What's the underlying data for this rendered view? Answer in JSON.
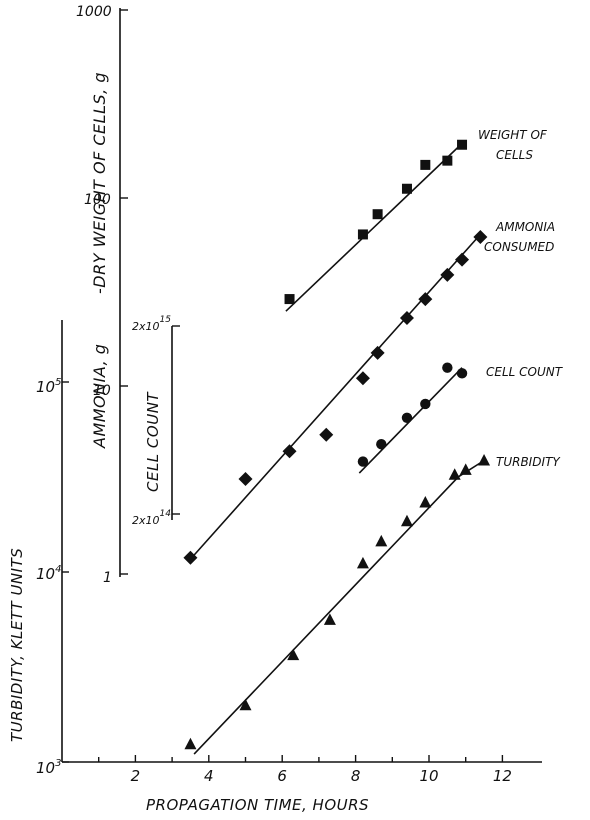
{
  "chart_data": {
    "type": "scatter",
    "title": "",
    "xlabel": "PROPAGATION TIME, HOURS",
    "x_ticks": [
      "2",
      "4",
      "6",
      "8",
      "10",
      "12"
    ],
    "xlim": [
      0,
      13
    ],
    "axes": {
      "turbidity": {
        "label": "TURBIDITY, KLETT UNITS",
        "scale": "log",
        "range": [
          1000,
          100000
        ],
        "tick_labels": [
          "10^3",
          "10^4",
          "10^5"
        ]
      },
      "ammonia_weight": {
        "label": "AMMONIA, g",
        "label2": "-DRY WEIGHT OF CELLS, g",
        "scale": "log",
        "range": [
          1,
          1000
        ],
        "tick_labels": [
          "1",
          "10",
          "100",
          "1000"
        ]
      },
      "cell_count": {
        "label": "CELL COUNT",
        "scale": "log",
        "range": [
          200000000000000.0,
          2000000000000000.0
        ],
        "tick_labels": [
          "2x10^14",
          "2x10^15"
        ]
      }
    },
    "series": [
      {
        "name": "WEIGHT OF CELLS",
        "axis": "ammonia_weight",
        "marker": "square",
        "x": [
          6.2,
          8.2,
          8.6,
          9.4,
          9.9,
          10.5,
          10.9
        ],
        "y": [
          29,
          64,
          82,
          112,
          150,
          158,
          192
        ],
        "fit": {
          "x": [
            6.1,
            10.9
          ],
          "y": [
            25,
            195
          ]
        }
      },
      {
        "name": "AMMONIA CONSUMED",
        "axis": "ammonia_weight",
        "marker": "diamond",
        "x": [
          3.5,
          5.0,
          6.2,
          7.2,
          8.2,
          8.6,
          9.4,
          9.9,
          10.5,
          10.9,
          11.4
        ],
        "y": [
          1.22,
          3.2,
          4.5,
          5.5,
          11,
          15,
          23,
          29,
          39,
          47,
          62
        ],
        "fit": {
          "x": [
            3.5,
            11.4
          ],
          "y": [
            1.2,
            64
          ]
        }
      },
      {
        "name": "CELL COUNT",
        "axis": "cell_count",
        "marker": "circle",
        "x": [
          8.2,
          8.7,
          9.4,
          9.9,
          10.5,
          10.9
        ],
        "y": [
          380000000000000.0,
          470000000000000.0,
          650000000000000.0,
          770000000000000.0,
          1200000000000000.0,
          1120000000000000.0
        ],
        "fit": {
          "x": [
            8.1,
            10.9
          ],
          "y": [
            330000000000000.0,
            1200000000000000.0
          ]
        }
      },
      {
        "name": "TURBIDITY",
        "axis": "turbidity",
        "marker": "triangle",
        "x": [
          3.5,
          5.0,
          6.3,
          7.3,
          8.2,
          8.7,
          9.4,
          9.9,
          10.7,
          11.0,
          11.5
        ],
        "y": [
          1240,
          1990,
          3650,
          5600,
          11100,
          14500,
          18500,
          23200,
          32500,
          34500,
          38600
        ],
        "fit": {
          "x": [
            3.6,
            10.8,
            11.5
          ],
          "y": [
            1100,
            31700,
            38600
          ]
        }
      }
    ],
    "labels": {
      "weight_line1": "WEIGHT OF",
      "weight_line2": "CELLS",
      "ammonia_line1": "AMMONIA",
      "ammonia_line2": "CONSUMED",
      "cellcount": "CELL COUNT",
      "turbidity": "TURBIDITY"
    }
  }
}
